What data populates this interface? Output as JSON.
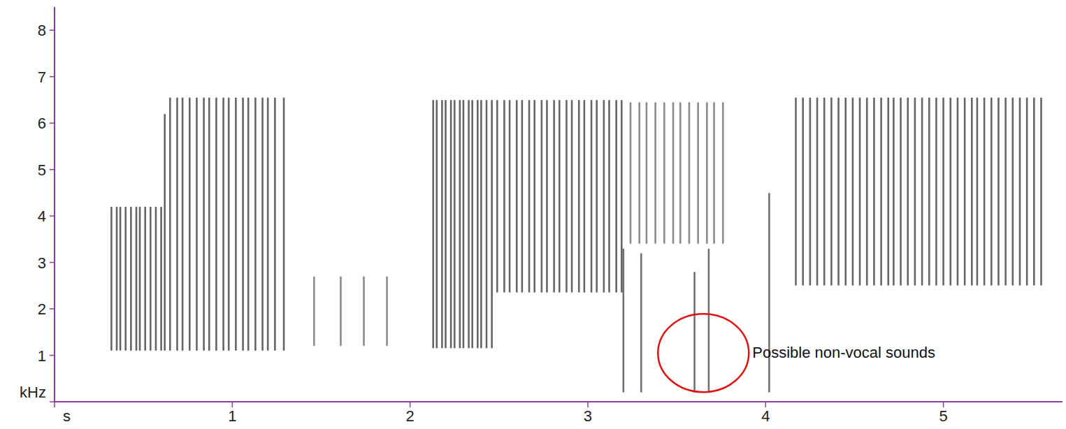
{
  "chart_data": {
    "type": "spectrogram",
    "xlim": [
      0,
      5.67
    ],
    "ylim": [
      0,
      8.5
    ],
    "xticks": [
      {
        "value": 0,
        "label": "s"
      },
      1,
      2,
      3,
      4,
      5
    ],
    "yticks": [
      {
        "value": 0,
        "label": "kHz"
      },
      1,
      2,
      3,
      4,
      5,
      6,
      7,
      8
    ],
    "pulses": [
      {
        "color": "#3a3a3a",
        "low": 1.1,
        "high": 4.2,
        "x": [
          0.32,
          0.35,
          0.37,
          0.4,
          0.43,
          0.46,
          0.48,
          0.51,
          0.54,
          0.57,
          0.6
        ]
      },
      {
        "color": "#3a3a3a",
        "low": 1.1,
        "high": 6.2,
        "x": [
          0.62
        ]
      },
      {
        "color": "#3a3a3a",
        "low": 1.1,
        "high": 6.55,
        "x": [
          0.65,
          0.69,
          0.72,
          0.76,
          0.8,
          0.84,
          0.87,
          0.91,
          0.95,
          0.98,
          1.02,
          1.06,
          1.09,
          1.13,
          1.17,
          1.2,
          1.24,
          1.29
        ]
      },
      {
        "color": "#6a6a6a",
        "low": 1.2,
        "high": 2.7,
        "x": [
          1.46,
          1.61,
          1.74,
          1.87
        ]
      },
      {
        "color": "#3a3a3a",
        "low": 1.15,
        "high": 6.5,
        "x": [
          2.13,
          2.15,
          2.18,
          2.2,
          2.23,
          2.25,
          2.28,
          2.3,
          2.33,
          2.35,
          2.38,
          2.4,
          2.43,
          2.46
        ]
      },
      {
        "color": "#3a3a3a",
        "low": 2.35,
        "high": 6.5,
        "x": [
          2.49,
          2.53,
          2.56,
          2.6,
          2.63,
          2.67,
          2.7,
          2.74,
          2.77,
          2.81,
          2.84,
          2.88,
          2.91,
          2.95,
          2.98,
          3.02,
          3.05,
          3.09,
          3.12,
          3.16,
          3.19
        ]
      },
      {
        "color": "#6a6a6a",
        "low": 3.4,
        "high": 6.45,
        "x": [
          3.24,
          3.29,
          3.33,
          3.38,
          3.43,
          3.48,
          3.52,
          3.57,
          3.62,
          3.67,
          3.71,
          3.76
        ]
      },
      {
        "color": "#4a4a4a",
        "low": 0.2,
        "high": [
          3.3,
          3.2,
          2.8,
          3.3,
          4.5
        ],
        "x": [
          3.2,
          3.3,
          3.6,
          3.68,
          4.02
        ]
      },
      {
        "color": "#3a3a3a",
        "low": 2.5,
        "high": 6.55,
        "x": [
          4.17,
          4.21,
          4.25,
          4.29,
          4.33,
          4.37,
          4.41,
          4.45,
          4.49,
          4.53,
          4.57,
          4.61,
          4.65,
          4.69,
          4.72,
          4.76,
          4.8,
          4.84,
          4.88,
          4.92,
          4.96,
          5.0,
          5.04,
          5.08,
          5.12,
          5.16,
          5.19,
          5.23,
          5.27,
          5.31,
          5.35,
          5.39,
          5.43,
          5.47,
          5.51,
          5.55
        ]
      }
    ],
    "annotations": [
      {
        "text": "Possible non-vocal sounds",
        "x": 3.65,
        "y": 1.05
      }
    ]
  }
}
